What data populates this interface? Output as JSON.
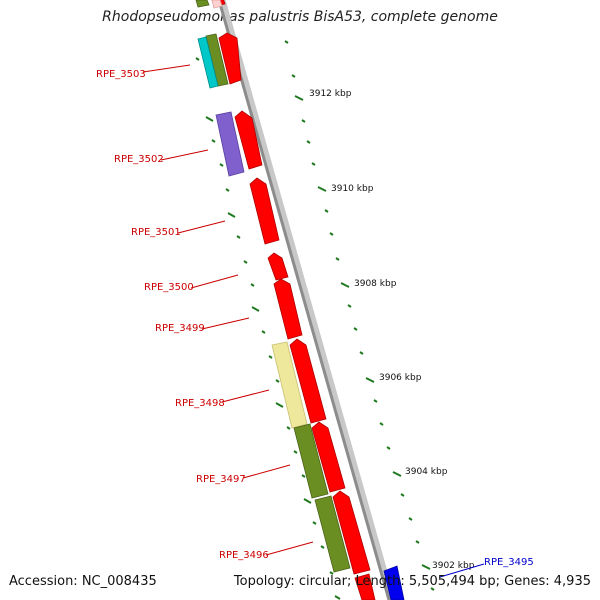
{
  "title": "Rhodopseudomonas palustris BisA53, complete genome",
  "footer": {
    "accession": "Accession: NC_008435",
    "summary": "Topology: circular; Length: 5,505,494 bp; Genes: 4,935"
  },
  "ruler": {
    "labels": [
      "3912 kbp",
      "3910 kbp",
      "3908 kbp",
      "3906 kbp",
      "3904 kbp",
      "3902 kbp"
    ]
  },
  "genes": [
    {
      "label": "RPE_3503",
      "color": "#cc0000"
    },
    {
      "label": "RPE_3502",
      "color": "#cc0000"
    },
    {
      "label": "RPE_3501",
      "color": "#cc0000"
    },
    {
      "label": "RPE_3500",
      "color": "#cc0000"
    },
    {
      "label": "RPE_3499",
      "color": "#cc0000"
    },
    {
      "label": "RPE_3498",
      "color": "#cc0000"
    },
    {
      "label": "RPE_3497",
      "color": "#cc0000"
    },
    {
      "label": "RPE_3496",
      "color": "#cc0000"
    },
    {
      "label": "RPE_3495",
      "color": "#0000cc"
    }
  ],
  "colors": {
    "cds_forward": "#ff0000",
    "cds_reverse": "#6b8e23",
    "backbone": "#8c8c8c",
    "tick": "#1f7a1f",
    "cyan": "#00cccc",
    "purple": "#8060cc",
    "yellow": "#eee8a0",
    "blue": "#0000ee"
  }
}
